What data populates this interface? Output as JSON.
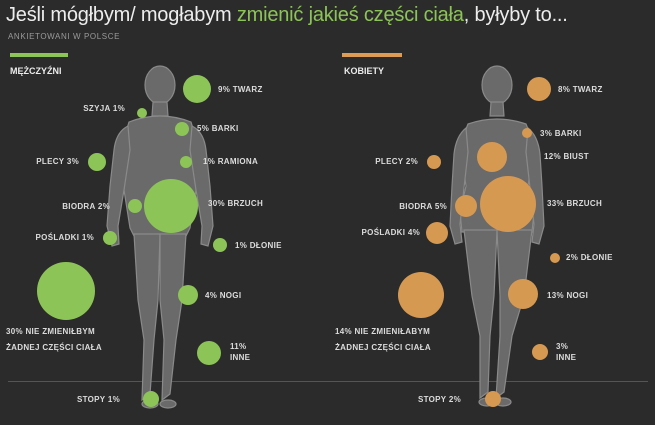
{
  "title": {
    "part1": "Jeśli mógłbym/ mogłabym ",
    "highlight": "zmienić jakieś części ciała",
    "part2": ", byłyby to..."
  },
  "subtitle": "ANKIETOWANI W POLSCE",
  "colors": {
    "men": "#8dc457",
    "women": "#d69952",
    "background": "#2b2b2b"
  },
  "men": {
    "label": "MĘŻCZYŹNI",
    "items": [
      {
        "name": "TWARZ",
        "value": "9%"
      },
      {
        "name": "SZYJA",
        "value": "1%"
      },
      {
        "name": "BARKI",
        "value": "5%"
      },
      {
        "name": "PLECY",
        "value": "3%"
      },
      {
        "name": "RAMIONA",
        "value": "1%"
      },
      {
        "name": "BIODRA",
        "value": "2%"
      },
      {
        "name": "BRZUCH",
        "value": "30%"
      },
      {
        "name": "POŚLADKI",
        "value": "1%"
      },
      {
        "name": "DŁONIE",
        "value": "1%"
      },
      {
        "name": "NOGI",
        "value": "4%"
      },
      {
        "name": "INNE",
        "value": "11%"
      },
      {
        "name": "STOPY",
        "value": "1%"
      }
    ],
    "none": {
      "value": "30%",
      "line1": "NIE ZMIENIŁBYM",
      "line2": "ŻADNEJ CZĘŚCI CIAŁA"
    }
  },
  "women": {
    "label": "KOBIETY",
    "items": [
      {
        "name": "TWARZ",
        "value": "8%"
      },
      {
        "name": "BARKI",
        "value": "3%"
      },
      {
        "name": "PLECY",
        "value": "2%"
      },
      {
        "name": "BIUST",
        "value": "12%"
      },
      {
        "name": "BIODRA",
        "value": "5%"
      },
      {
        "name": "BRZUCH",
        "value": "33%"
      },
      {
        "name": "POŚLADKI",
        "value": "4%"
      },
      {
        "name": "DŁONIE",
        "value": "2%"
      },
      {
        "name": "NOGI",
        "value": "13%"
      },
      {
        "name": "INNE",
        "value": "3%"
      },
      {
        "name": "STOPY",
        "value": "2%"
      }
    ],
    "none": {
      "value": "14%",
      "line1": "NIE ZMIENIŁABYM",
      "line2": "ŻADNEJ CZĘŚCI CIAŁA"
    }
  }
}
